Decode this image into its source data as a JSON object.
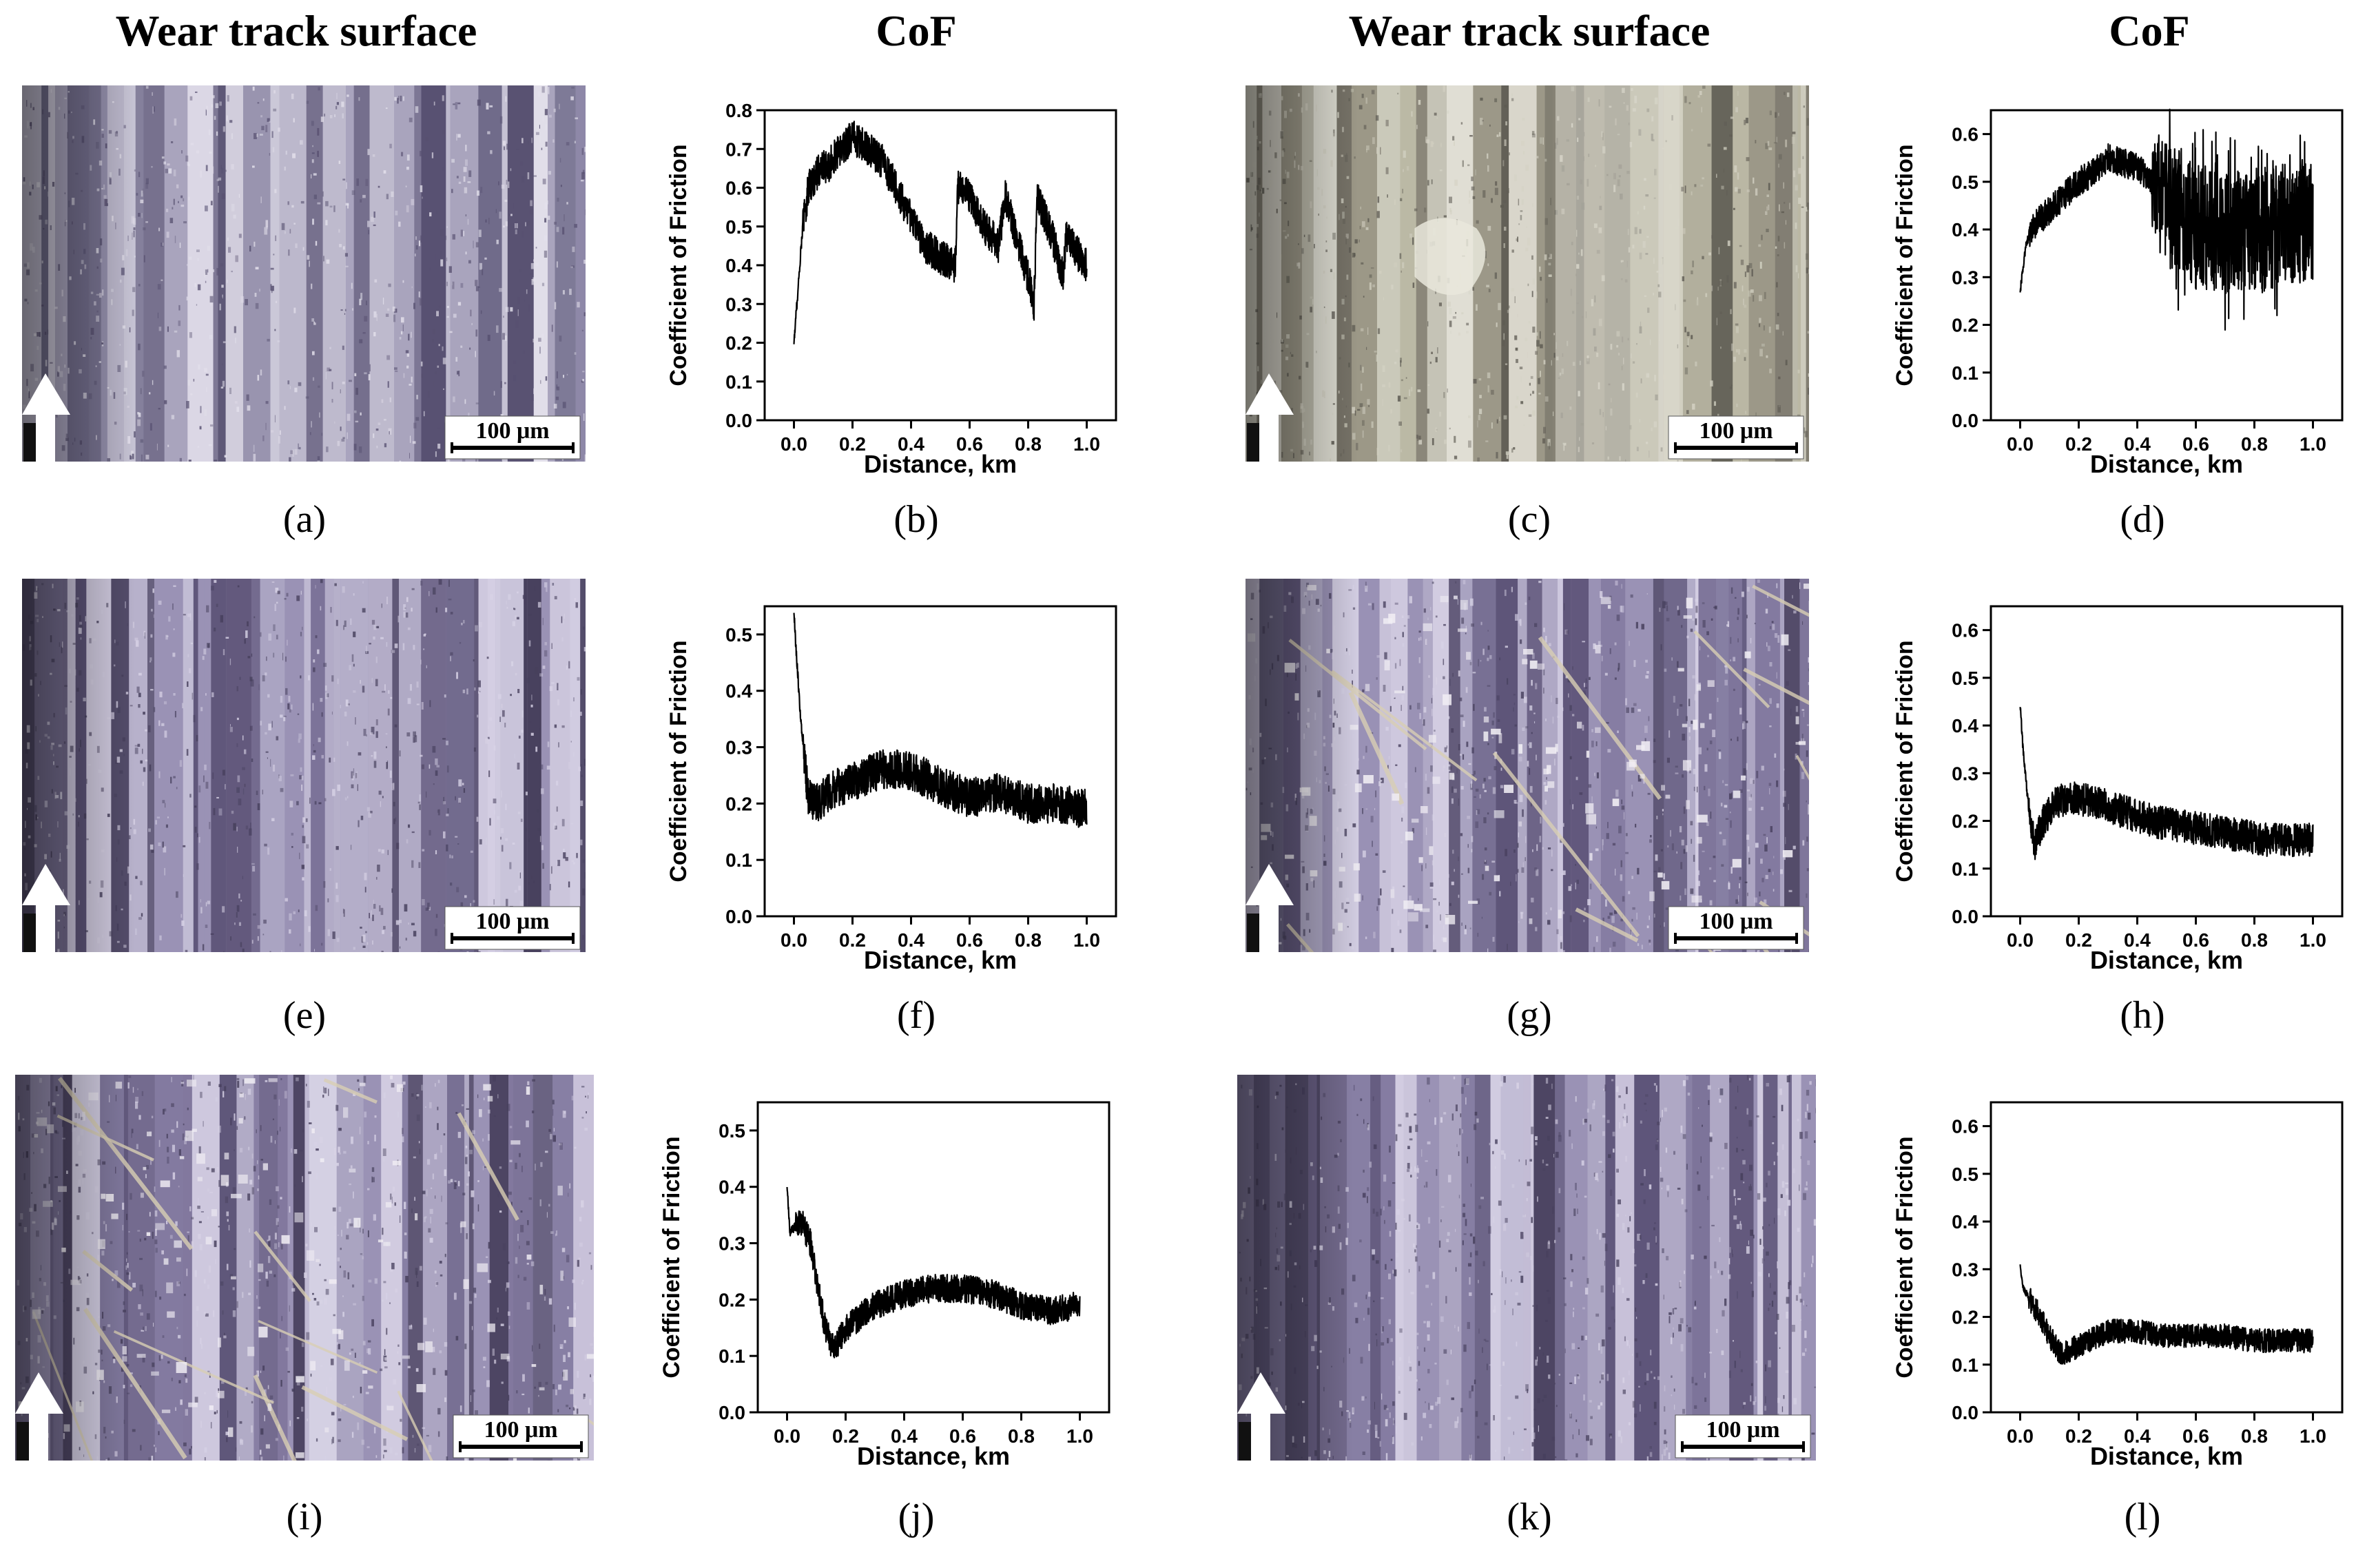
{
  "headers": {
    "wear_left": "Wear track surface",
    "cof_left": "CoF",
    "wear_right": "Wear track surface",
    "cof_right": "CoF"
  },
  "scale_bar_label": "100 μm",
  "photos": [
    {
      "id": "a",
      "caption": "(a)",
      "palette": "lightgray-blue",
      "damage": "grooves"
    },
    {
      "id": "c",
      "caption": "(c)",
      "palette": "gray-white",
      "damage": "delamination"
    },
    {
      "id": "e",
      "caption": "(e)",
      "palette": "lavender",
      "damage": "grooves"
    },
    {
      "id": "g",
      "caption": "(g)",
      "palette": "lavender",
      "damage": "fibers-debris"
    },
    {
      "id": "i",
      "caption": "(i)",
      "palette": "lavender",
      "damage": "debris"
    },
    {
      "id": "k",
      "caption": "(k)",
      "palette": "lavender",
      "damage": "grooves"
    }
  ],
  "chart_data": [
    {
      "id": "b",
      "caption": "(b)",
      "type": "line",
      "xlabel": "Distance, km",
      "ylabel": "Coefficient of Friction",
      "xlim": [
        -0.1,
        1.1
      ],
      "ylim": [
        0,
        0.8
      ],
      "xticks": [
        "0.0",
        "0.2",
        "0.4",
        "0.6",
        "0.8",
        "1.0"
      ],
      "yticks": [
        "0.0",
        "0.1",
        "0.2",
        "0.3",
        "0.4",
        "0.5",
        "0.6",
        "0.7",
        "0.8"
      ],
      "x": [
        0.0,
        0.01,
        0.03,
        0.05,
        0.08,
        0.12,
        0.16,
        0.2,
        0.25,
        0.3,
        0.35,
        0.4,
        0.45,
        0.5,
        0.55,
        0.56,
        0.6,
        0.65,
        0.7,
        0.72,
        0.75,
        0.8,
        0.82,
        0.83,
        0.88,
        0.92,
        0.93,
        1.0
      ],
      "y": [
        0.2,
        0.3,
        0.5,
        0.6,
        0.64,
        0.66,
        0.7,
        0.73,
        0.7,
        0.67,
        0.6,
        0.52,
        0.45,
        0.42,
        0.4,
        0.6,
        0.58,
        0.5,
        0.45,
        0.58,
        0.5,
        0.37,
        0.3,
        0.58,
        0.48,
        0.37,
        0.47,
        0.4
      ],
      "band": 0.045
    },
    {
      "id": "d",
      "caption": "(d)",
      "type": "line",
      "xlabel": "Distance, km",
      "ylabel": "Coefficient of Friction",
      "xlim": [
        -0.1,
        1.1
      ],
      "ylim": [
        0,
        0.65
      ],
      "xticks": [
        "0.0",
        "0.2",
        "0.4",
        "0.6",
        "0.8",
        "1.0"
      ],
      "yticks": [
        "0.0",
        "0.1",
        "0.2",
        "0.3",
        "0.4",
        "0.5",
        "0.6"
      ],
      "x": [
        0.0,
        0.02,
        0.05,
        0.1,
        0.15,
        0.2,
        0.25,
        0.3,
        0.35,
        0.4,
        0.45,
        0.5,
        0.6,
        0.7,
        0.8,
        0.9,
        1.0
      ],
      "y": [
        0.27,
        0.37,
        0.41,
        0.44,
        0.47,
        0.5,
        0.52,
        0.55,
        0.54,
        0.53,
        0.5,
        0.45,
        0.41,
        0.39,
        0.4,
        0.41,
        0.42
      ],
      "band": 0.03,
      "noisy_from": 0.45,
      "noise": 0.13
    },
    {
      "id": "f",
      "caption": "(f)",
      "type": "line",
      "xlabel": "Distance, km",
      "ylabel": "Coefficient of Friction",
      "xlim": [
        -0.1,
        1.1
      ],
      "ylim": [
        0,
        0.55
      ],
      "xticks": [
        "0.0",
        "0.2",
        "0.4",
        "0.6",
        "0.8",
        "1.0"
      ],
      "yticks": [
        "0.0",
        "0.1",
        "0.2",
        "0.3",
        "0.4",
        "0.5"
      ],
      "x": [
        0.0,
        0.01,
        0.03,
        0.05,
        0.08,
        0.12,
        0.2,
        0.3,
        0.4,
        0.5,
        0.6,
        0.7,
        0.8,
        0.9,
        1.0
      ],
      "y": [
        0.54,
        0.45,
        0.3,
        0.21,
        0.2,
        0.22,
        0.24,
        0.26,
        0.26,
        0.23,
        0.21,
        0.22,
        0.2,
        0.2,
        0.19
      ],
      "band": 0.035
    },
    {
      "id": "h",
      "caption": "(h)",
      "type": "line",
      "xlabel": "Distance, km",
      "ylabel": "Coefficient of Friction",
      "xlim": [
        -0.1,
        1.1
      ],
      "ylim": [
        0,
        0.65
      ],
      "xticks": [
        "0.0",
        "0.2",
        "0.4",
        "0.6",
        "0.8",
        "1.0"
      ],
      "yticks": [
        "0.0",
        "0.1",
        "0.2",
        "0.3",
        "0.4",
        "0.5",
        "0.6"
      ],
      "x": [
        0.0,
        0.01,
        0.03,
        0.05,
        0.08,
        0.12,
        0.18,
        0.25,
        0.35,
        0.45,
        0.55,
        0.65,
        0.75,
        0.85,
        1.0
      ],
      "y": [
        0.44,
        0.35,
        0.22,
        0.15,
        0.2,
        0.24,
        0.25,
        0.24,
        0.22,
        0.2,
        0.19,
        0.18,
        0.17,
        0.16,
        0.16
      ],
      "band": 0.035
    },
    {
      "id": "j",
      "caption": "(j)",
      "type": "line",
      "xlabel": "Distance, km",
      "ylabel": "Coefficient of Friction",
      "xlim": [
        -0.1,
        1.1
      ],
      "ylim": [
        0,
        0.55
      ],
      "xticks": [
        "0.0",
        "0.2",
        "0.4",
        "0.6",
        "0.8",
        "1.0"
      ],
      "yticks": [
        "0.0",
        "0.1",
        "0.2",
        "0.3",
        "0.4",
        "0.5"
      ],
      "x": [
        0.0,
        0.01,
        0.03,
        0.05,
        0.08,
        0.1,
        0.13,
        0.16,
        0.2,
        0.3,
        0.4,
        0.5,
        0.6,
        0.7,
        0.8,
        0.9,
        1.0
      ],
      "y": [
        0.4,
        0.32,
        0.33,
        0.34,
        0.3,
        0.24,
        0.15,
        0.11,
        0.15,
        0.19,
        0.21,
        0.22,
        0.22,
        0.21,
        0.19,
        0.18,
        0.19
      ],
      "band": 0.025
    },
    {
      "id": "l",
      "caption": "(l)",
      "type": "line",
      "xlabel": "Distance, km",
      "ylabel": "Coefficient of Friction",
      "xlim": [
        -0.1,
        1.1
      ],
      "ylim": [
        0,
        0.65
      ],
      "xticks": [
        "0.0",
        "0.2",
        "0.4",
        "0.6",
        "0.8",
        "1.0"
      ],
      "yticks": [
        "0.0",
        "0.1",
        "0.2",
        "0.3",
        "0.4",
        "0.5",
        "0.6"
      ],
      "x": [
        0.0,
        0.01,
        0.03,
        0.06,
        0.1,
        0.14,
        0.2,
        0.3,
        0.4,
        0.5,
        0.6,
        0.7,
        0.8,
        0.9,
        1.0
      ],
      "y": [
        0.31,
        0.26,
        0.24,
        0.21,
        0.16,
        0.12,
        0.14,
        0.17,
        0.17,
        0.16,
        0.16,
        0.16,
        0.15,
        0.15,
        0.15
      ],
      "band": 0.025
    }
  ]
}
